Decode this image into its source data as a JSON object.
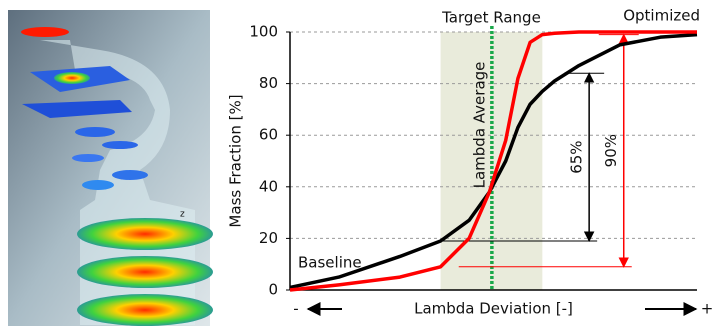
{
  "chart_data": {
    "type": "line",
    "x": [
      0,
      12,
      27,
      37,
      44,
      49,
      53,
      56,
      59,
      62,
      65,
      71,
      81,
      91,
      100
    ],
    "xlim": [
      0,
      100
    ],
    "series": [
      {
        "name": "Baseline",
        "color": "#000000",
        "values": [
          1,
          5,
          13,
          19,
          27,
          38,
          50,
          63,
          72,
          77,
          81,
          87,
          95,
          98,
          99
        ]
      },
      {
        "name": "Optimized",
        "color": "#ff0000",
        "values": [
          0,
          2,
          5,
          9,
          20,
          38,
          58,
          82,
          96,
          99,
          99.5,
          100,
          100,
          100,
          100
        ]
      }
    ],
    "ylim": [
      0,
      100
    ],
    "yticks": [
      0,
      20,
      40,
      60,
      80,
      100
    ],
    "grid": true,
    "y_label": "Mass Fraction [%]",
    "x_label": "Lambda Deviation [-]",
    "x_left_label": "-",
    "x_right_label": "+",
    "target_range": {
      "label": "Target Range",
      "from": 37,
      "to": 62,
      "color": "#e9ebdb"
    },
    "lambda_average": {
      "label": "Lambda Average",
      "x": 49.6,
      "color": "#1aa84a"
    },
    "spans": [
      {
        "label": "65%",
        "x": 73.5,
        "from": 19,
        "to": 84,
        "color": "#000000"
      },
      {
        "label": "90%",
        "x": 82,
        "from": 9,
        "to": 99,
        "color": "#ff0000"
      }
    ]
  }
}
